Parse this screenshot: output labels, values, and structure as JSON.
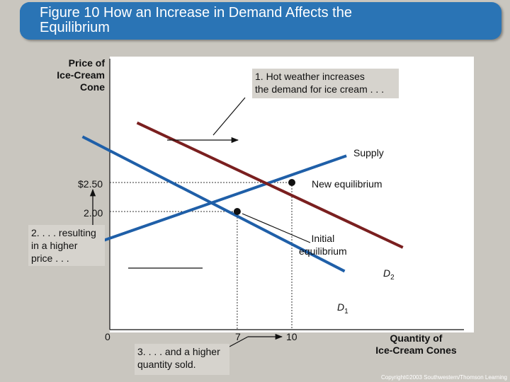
{
  "title": "Figure 10 How an Increase in Demand Affects the\nEquilibrium",
  "colors": {
    "banner": "#2a74b5",
    "demand_new": "#7a1f1f",
    "demand_old": "#1f5fa8",
    "supply": "#1f5fa8"
  },
  "chart_data": {
    "type": "line",
    "ylabel": "Price of\nIce-Cream\nCone",
    "xlabel": "Quantity of\nIce-Cream Cones",
    "series": [
      {
        "name": "Supply",
        "points": [
          [
            -0.9,
            1.44
          ],
          [
            13.0,
            2.96
          ]
        ]
      },
      {
        "name": "D1",
        "points": [
          [
            -1.5,
            3.29
          ],
          [
            12.9,
            0.97
          ]
        ]
      },
      {
        "name": "D2",
        "points": [
          [
            1.5,
            3.53
          ],
          [
            16.1,
            1.38
          ]
        ]
      }
    ],
    "points": [
      {
        "name": "Initial equilibrium",
        "x": 7,
        "y": 2.0
      },
      {
        "name": "New equilibrium",
        "x": 10,
        "y": 2.5
      }
    ],
    "x_ticks": [
      {
        "value": 0,
        "label": "0"
      },
      {
        "value": 7,
        "label": "7"
      },
      {
        "value": 10,
        "label": "10"
      }
    ],
    "y_ticks": [
      {
        "value": 2.5,
        "label": "$2.50"
      },
      {
        "value": 2.0,
        "label": "2.00"
      }
    ],
    "labels": {
      "supply": "Supply",
      "d1": "D",
      "d1_sub": "1",
      "d2": "D",
      "d2_sub": "2",
      "new_eq": "New equilibrium",
      "initial_eq": "Initial\nequilibrium"
    },
    "annotations": {
      "hot_weather": "1. Hot weather increases\nthe demand for ice cream . . .",
      "higher_price": "2. . . . resulting\nin a higher\nprice . . .",
      "quantity_sold": "3. . . . and a higher\nquantity sold."
    }
  },
  "footer": "Copyright©2003  Southwestern/Thomson Learning"
}
